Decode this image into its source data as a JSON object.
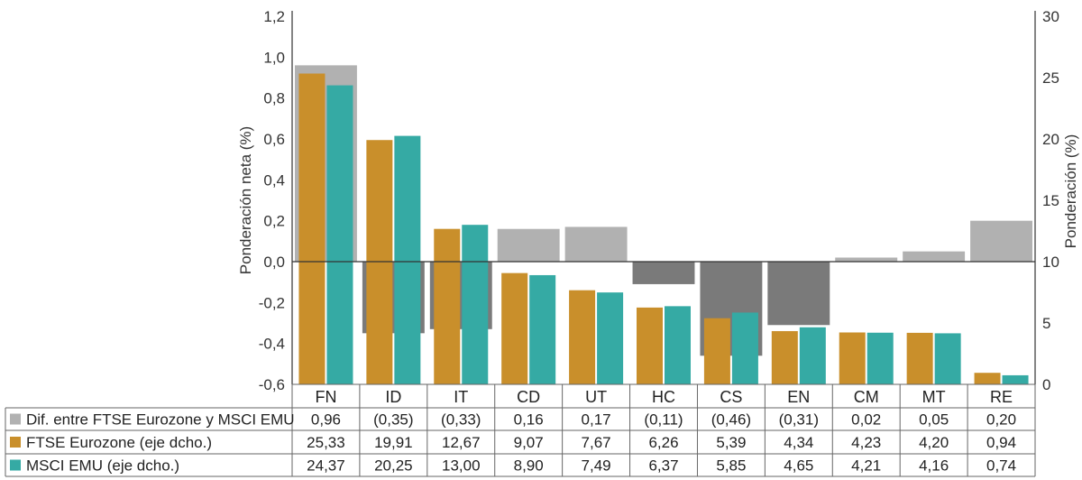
{
  "chart_data": {
    "type": "bar",
    "categories": [
      "FN",
      "ID",
      "IT",
      "CD",
      "UT",
      "HC",
      "CS",
      "EN",
      "CM",
      "MT",
      "RE"
    ],
    "series": [
      {
        "name": "Dif. entre FTSE Eurozone y MSCI EMU",
        "axis": "left",
        "values": [
          0.96,
          -0.35,
          -0.33,
          0.16,
          0.17,
          -0.11,
          -0.46,
          -0.31,
          0.02,
          0.05,
          0.2
        ],
        "labels": [
          "0,96",
          "(0,35)",
          "(0,33)",
          "0,16",
          "0,17",
          "(0,11)",
          "(0,46)",
          "(0,31)",
          "0,02",
          "0,05",
          "0,20"
        ],
        "color_positive": "#b1b1b1",
        "color_negative": "#7a7a7a"
      },
      {
        "name": "FTSE Eurozone (eje dcho.)",
        "axis": "right",
        "values": [
          25.33,
          19.91,
          12.67,
          9.07,
          7.67,
          6.26,
          5.39,
          4.34,
          4.23,
          4.2,
          0.94
        ],
        "labels": [
          "25,33",
          "19,91",
          "12,67",
          "9,07",
          "7,67",
          "6,26",
          "5,39",
          "4,34",
          "4,23",
          "4,20",
          "0,94"
        ],
        "color": "#c98f2b"
      },
      {
        "name": "MSCI EMU (eje dcho.)",
        "axis": "right",
        "values": [
          24.37,
          20.25,
          13.0,
          8.9,
          7.49,
          6.37,
          5.85,
          4.65,
          4.21,
          4.16,
          0.74
        ],
        "labels": [
          "24,37",
          "20,25",
          "13,00",
          "8,90",
          "7,49",
          "6,37",
          "5,85",
          "4,65",
          "4,21",
          "4,16",
          "0,74"
        ],
        "color": "#35aaa4"
      }
    ],
    "y_left": {
      "label": "Ponderación neta (%)",
      "range": [
        -0.6,
        1.2
      ],
      "ticks": [
        1.2,
        1.0,
        0.8,
        0.6,
        0.4,
        0.2,
        0.0,
        -0.2,
        -0.4,
        -0.6
      ],
      "tick_labels": [
        "1,2",
        "1,0",
        "0,8",
        "0,6",
        "0,4",
        "0,2",
        "0,0",
        "-0,2",
        "-0,4",
        "-0,6"
      ]
    },
    "y_right": {
      "label": "Ponderación (%)",
      "range": [
        0,
        30
      ],
      "ticks": [
        30,
        25,
        20,
        15,
        10,
        5,
        0
      ],
      "tick_labels": [
        "30",
        "25",
        "20",
        "15",
        "10",
        "5",
        "0"
      ]
    },
    "grid": false,
    "legend": "table-below"
  }
}
